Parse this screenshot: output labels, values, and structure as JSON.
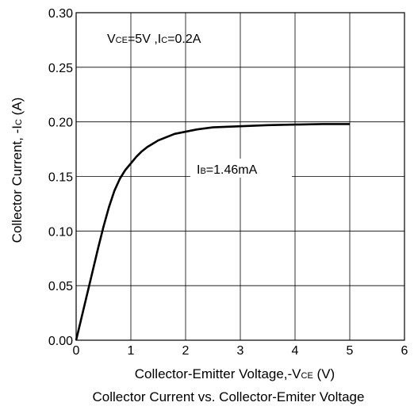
{
  "chart_data": {
    "type": "line",
    "title": "Collector Current vs. Collector-Emiter Voltage",
    "xlabel": {
      "main": "Collector-Emitter Voltage,-V",
      "sub": "CE",
      "unit": " (V)"
    },
    "ylabel": {
      "main": "Collector Current, -I",
      "sub": "C",
      "unit": " (A)"
    },
    "xlim": [
      0,
      6
    ],
    "ylim": [
      0,
      0.3
    ],
    "x_ticks": [
      0,
      1,
      2,
      3,
      4,
      5,
      6
    ],
    "x_tick_labels": [
      "0",
      "1",
      "2",
      "3",
      "4",
      "5",
      "6"
    ],
    "y_ticks": [
      0,
      0.05,
      0.1,
      0.15,
      0.2,
      0.25,
      0.3
    ],
    "y_tick_labels": [
      "0.00",
      "0.05",
      "0.10",
      "0.15",
      "0.20",
      "0.25",
      "0.30"
    ],
    "grid": true,
    "annotations": {
      "condition": {
        "v_prefix": "V",
        "v_sub": "CE",
        "v_value": "=5V  ,I",
        "i_sub": "C",
        "i_value": "=0.2A"
      },
      "curve_label": {
        "prefix": "I",
        "sub": "B",
        "value": "=1.46mA"
      }
    },
    "series": [
      {
        "color": "#000000",
        "x": [
          0,
          0.1,
          0.2,
          0.3,
          0.4,
          0.5,
          0.6,
          0.7,
          0.8,
          0.9,
          1.0,
          1.1,
          1.2,
          1.3,
          1.4,
          1.5,
          1.6,
          1.8,
          2.0,
          2.2,
          2.5,
          3.0,
          3.5,
          4.0,
          4.5,
          5.0
        ],
        "y": [
          0,
          0.021,
          0.042,
          0.063,
          0.084,
          0.104,
          0.122,
          0.137,
          0.148,
          0.156,
          0.162,
          0.168,
          0.173,
          0.177,
          0.18,
          0.183,
          0.185,
          0.189,
          0.191,
          0.193,
          0.195,
          0.196,
          0.197,
          0.1975,
          0.198,
          0.198
        ]
      }
    ]
  }
}
